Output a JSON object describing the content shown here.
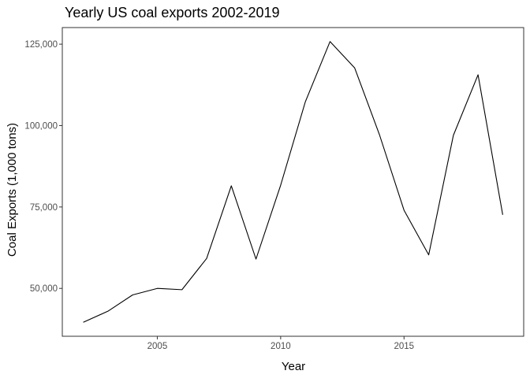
{
  "chart_data": {
    "type": "line",
    "title": "Yearly US coal exports 2002-2019",
    "xlabel": "Year",
    "ylabel": "Coal Exports (1,000 tons)",
    "x": [
      2002,
      2003,
      2004,
      2005,
      2006,
      2007,
      2008,
      2009,
      2010,
      2011,
      2012,
      2013,
      2014,
      2015,
      2016,
      2017,
      2018,
      2019
    ],
    "series": [
      {
        "values": [
          39600,
          43000,
          48000,
          50000,
          49600,
          59200,
          81500,
          59000,
          81700,
          107300,
          125800,
          117700,
          97300,
          74000,
          60300,
          97000,
          115600,
          72600
        ]
      }
    ],
    "xlim": [
      2001.15,
      2019.85
    ],
    "ylim": [
      35300,
      130100
    ],
    "xticks": [
      2005,
      2010,
      2015
    ],
    "xtick_labels": [
      "2005",
      "2010",
      "2015"
    ],
    "yticks": [
      50000,
      75000,
      100000,
      125000
    ],
    "ytick_labels": [
      "50,000",
      "75,000",
      "100,000",
      "125,000"
    ],
    "grid": false,
    "line_color": "#000000",
    "frame_color": "#333333"
  }
}
